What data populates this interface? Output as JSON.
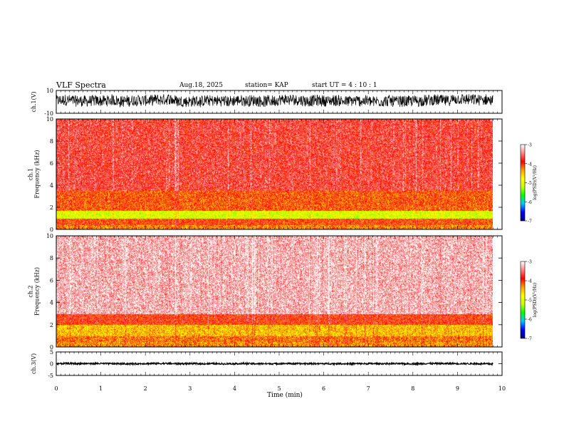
{
  "header": {
    "title": "VLF Spectra",
    "date": "Aug.18, 2025",
    "station": "station= KAP",
    "start": "start  UT  =   4  : 10 : 1"
  },
  "chart_data": [
    {
      "type": "line",
      "name": "ch1-waveform",
      "ylabel": "ch.1(V)",
      "ylim": [
        -10,
        10
      ],
      "ytick_labels": [
        "10",
        "-10"
      ],
      "xlim": [
        0,
        10
      ],
      "x_extent_min": 9.8,
      "center": 1,
      "amplitude": 5,
      "color": "#000000"
    },
    {
      "type": "heatmap",
      "name": "ch1-spectrogram",
      "ylabel": "ch.1\nFrequency (kHz)",
      "ylabel_lines": [
        "ch.1",
        "Frequency  (kHz)"
      ],
      "ylim": [
        0,
        10
      ],
      "ytick_labels": [
        "0",
        "2",
        "4",
        "6",
        "8",
        "10"
      ],
      "xlim": [
        0,
        10
      ],
      "x_extent_min": 9.8,
      "bands": [
        {
          "from": 0.0,
          "to": 0.4,
          "level": -4.3
        },
        {
          "from": 0.4,
          "to": 1.0,
          "level": -4.0
        },
        {
          "from": 1.0,
          "to": 1.7,
          "level": -5.0
        },
        {
          "from": 1.7,
          "to": 3.5,
          "level": -4.1
        },
        {
          "from": 3.5,
          "to": 10.0,
          "level": -3.7
        }
      ]
    },
    {
      "type": "heatmap",
      "name": "ch2-spectrogram",
      "ylabel": "ch.2\nFrequency (kHz)",
      "ylabel_lines": [
        "ch.2",
        "Frequency  (kHz)"
      ],
      "ylim": [
        0,
        10
      ],
      "ytick_labels": [
        "0",
        "2",
        "4",
        "6",
        "8",
        "10"
      ],
      "xlim": [
        0,
        10
      ],
      "x_extent_min": 9.8,
      "bands": [
        {
          "from": 0.0,
          "to": 0.5,
          "level": -4.3
        },
        {
          "from": 0.5,
          "to": 1.0,
          "level": -4.2
        },
        {
          "from": 1.0,
          "to": 2.0,
          "level": -4.5
        },
        {
          "from": 2.0,
          "to": 3.0,
          "level": -3.9
        },
        {
          "from": 3.0,
          "to": 10.0,
          "level": -3.25
        }
      ]
    },
    {
      "type": "line",
      "name": "ch3-waveform",
      "ylabel": "ch.3(V)",
      "ylim": [
        -5,
        5
      ],
      "ytick_labels": [
        "5",
        "0",
        "-5"
      ],
      "xlim": [
        0,
        10
      ],
      "x_extent_min": 9.8,
      "center": 0,
      "amplitude": 0.35,
      "color": "#000000"
    }
  ],
  "colorbar": {
    "label": "log(PSD)(V²/Hz)",
    "range": [
      -7,
      -3
    ],
    "tick_labels": [
      "-3",
      "-4",
      "-5",
      "-6",
      "-7"
    ],
    "stops": [
      "#000080",
      "#0000ff",
      "#00c8ff",
      "#00ff00",
      "#c8ff00",
      "#ffff00",
      "#ffa000",
      "#ff0000",
      "#ff8080",
      "#ffffff"
    ]
  },
  "xaxis": {
    "label": "Time  (min)",
    "tick_labels": [
      "0",
      "1",
      "2",
      "3",
      "4",
      "5",
      "6",
      "7",
      "8",
      "9",
      "10"
    ],
    "range": [
      0,
      10
    ]
  }
}
